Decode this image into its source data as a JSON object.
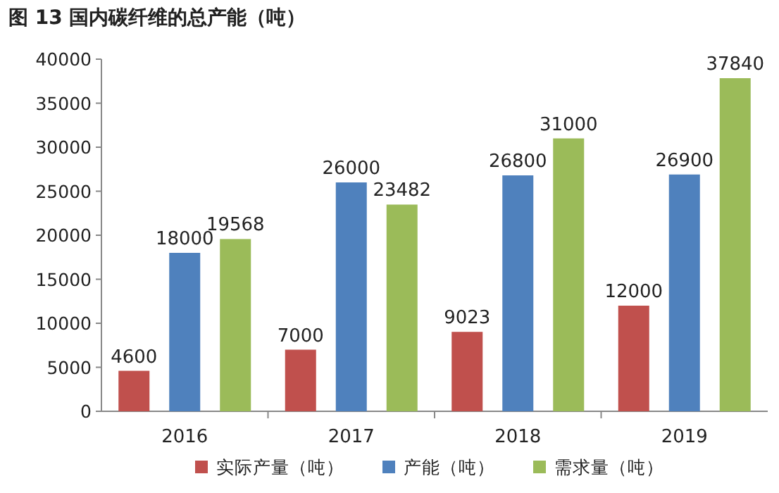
{
  "chart_data": {
    "type": "bar",
    "title": "图 13 国内碳纤维的总产能（吨）",
    "categories": [
      "2016",
      "2017",
      "2018",
      "2019"
    ],
    "series": [
      {
        "name": "实际产量（吨）",
        "color": "#c0504d",
        "values": [
          4600,
          7000,
          9023,
          12000
        ]
      },
      {
        "name": "产能（吨）",
        "color": "#4f81bd",
        "values": [
          18000,
          26000,
          26800,
          26900
        ]
      },
      {
        "name": "需求量（吨）",
        "color": "#9bbb59",
        "values": [
          19568,
          23482,
          31000,
          37840
        ]
      }
    ],
    "ylim": [
      0,
      40000
    ],
    "yticks": [
      0,
      5000,
      10000,
      15000,
      20000,
      25000,
      30000,
      35000,
      40000
    ],
    "data_labels": true,
    "legend": "bottom",
    "grid": false
  }
}
